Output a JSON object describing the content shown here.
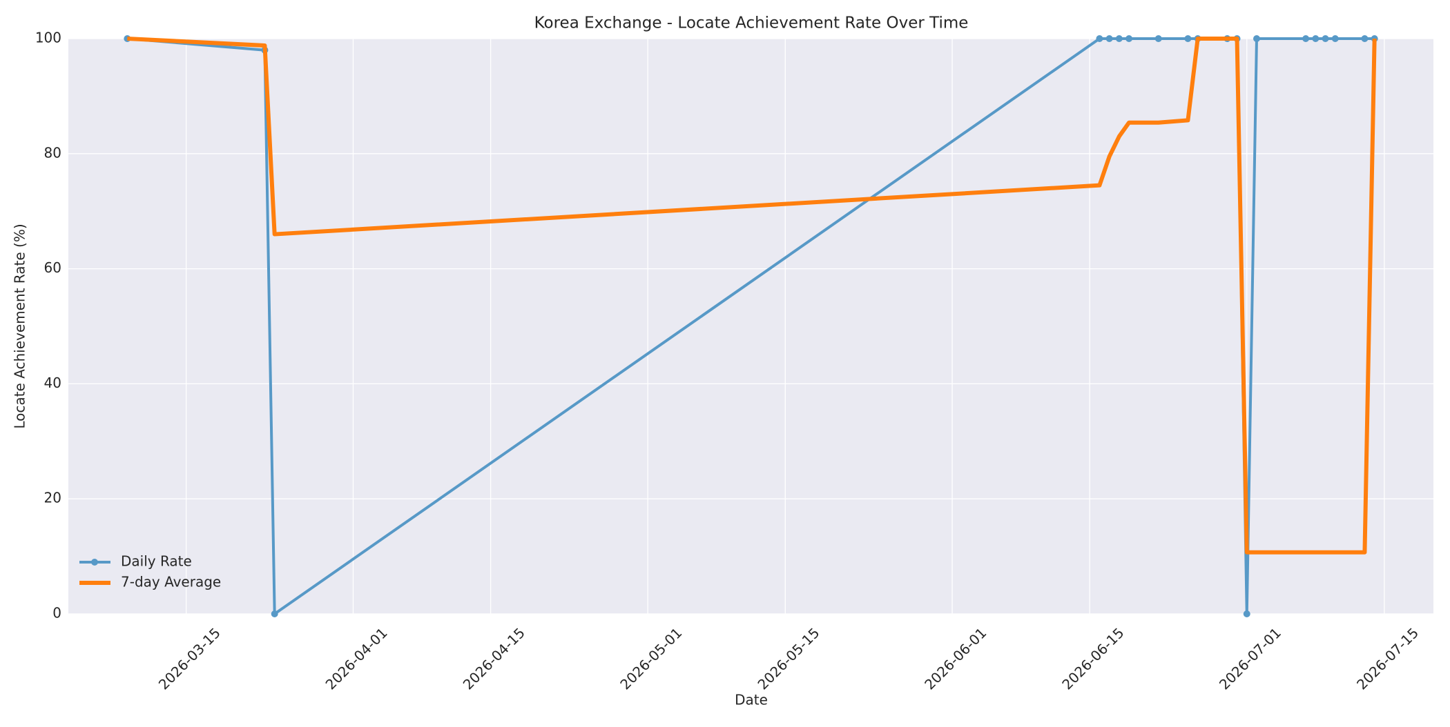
{
  "chart_data": {
    "type": "line",
    "title": "Korea Exchange - Locate Achievement Rate Over Time",
    "x_label": "Date",
    "y_label": "Locate Achievement Rate (%)",
    "x": [
      "2026-03-09",
      "2026-03-23",
      "2026-03-24",
      "2026-06-16",
      "2026-06-17",
      "2026-06-18",
      "2026-06-19",
      "2026-06-22",
      "2026-06-25",
      "2026-06-26",
      "2026-06-29",
      "2026-06-30",
      "2026-07-01",
      "2026-07-02",
      "2026-07-07",
      "2026-07-08",
      "2026-07-09",
      "2026-07-10",
      "2026-07-13",
      "2026-07-14"
    ],
    "series": [
      {
        "name": "Daily Rate",
        "color": "#5799c7",
        "marker": true,
        "values": [
          100,
          98,
          0,
          100,
          100,
          100,
          100,
          100,
          100,
          100,
          100,
          100,
          0,
          100,
          100,
          100,
          100,
          100,
          100,
          100
        ]
      },
      {
        "name": "7-day Average",
        "color": "#ff7f0e",
        "marker": false,
        "values": [
          100,
          98.8,
          66,
          74.5,
          79.5,
          83,
          85.4,
          85.4,
          85.8,
          100,
          100,
          100,
          10.7,
          10.7,
          10.7,
          10.7,
          10.7,
          10.7,
          10.7,
          100
        ]
      }
    ],
    "xlim": [
      "2026-03-03",
      "2026-07-20"
    ],
    "xticks": [
      "2026-03-15",
      "2026-04-01",
      "2026-04-15",
      "2026-05-01",
      "2026-05-15",
      "2026-06-01",
      "2026-06-15",
      "2026-07-01",
      "2026-07-15"
    ],
    "ylim": [
      0,
      100
    ],
    "yticks": [
      0,
      20,
      40,
      60,
      80,
      100
    ],
    "grid": true,
    "legend": "lower left"
  }
}
